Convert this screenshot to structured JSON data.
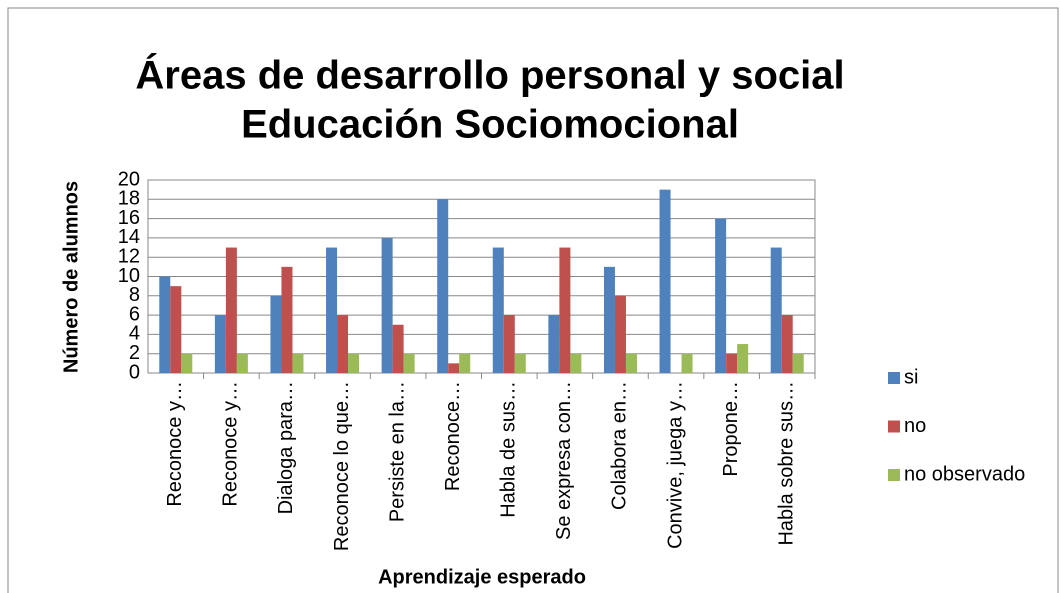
{
  "chart_data": {
    "type": "bar",
    "title": [
      "Áreas de desarrollo personal y social",
      "Educación Sociomocional"
    ],
    "x_label": "Aprendizaje esperado",
    "y_label": "Número de alumnos",
    "categories": [
      "Reconoce y…",
      "Reconoce y…",
      "Dialoga para…",
      "Reconoce lo que…",
      "Persiste en la…",
      "Reconoce…",
      "Habla de sus…",
      "Se expresa con…",
      "Colabora en…",
      "Convive, juega y…",
      "Propone…",
      "Habla sobre sus…"
    ],
    "series": [
      {
        "name": "si",
        "color": "#4f81bd",
        "values": [
          10,
          6,
          8,
          13,
          14,
          18,
          13,
          6,
          11,
          19,
          16,
          13
        ]
      },
      {
        "name": "no",
        "color": "#c0504d",
        "values": [
          9,
          13,
          11,
          6,
          5,
          1,
          6,
          13,
          8,
          0,
          2,
          6
        ]
      },
      {
        "name": "no observado",
        "color": "#9bbb59",
        "values": [
          2,
          2,
          2,
          2,
          2,
          2,
          2,
          2,
          2,
          2,
          3,
          2
        ]
      }
    ],
    "ylim": [
      0,
      20
    ],
    "yticks": [
      0,
      2,
      4,
      6,
      8,
      10,
      12,
      14,
      16,
      18,
      20
    ],
    "grid": true,
    "legend": "right"
  }
}
